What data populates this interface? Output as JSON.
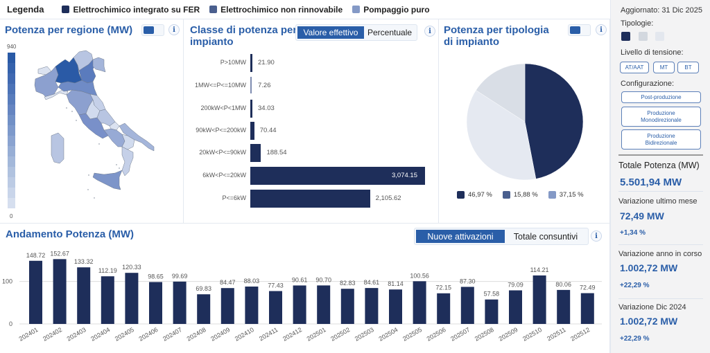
{
  "legend": {
    "title": "Legenda",
    "items": [
      {
        "label": "Elettrochimico integrato su FER",
        "color": "#1e2e5a"
      },
      {
        "label": "Elettrochimico non rinnovabile",
        "color": "#4a5f8e"
      },
      {
        "label": "Pompaggio puro",
        "color": "#8499c6"
      }
    ]
  },
  "map_panel": {
    "title": "Potenza per regione (MW)",
    "scale_max": "940",
    "scale_min": "0",
    "info_icon": "i"
  },
  "class_panel": {
    "title_line1": "Classe di potenza per",
    "title_line2": "impianto",
    "options": [
      "Valore effettivo",
      "Percentuale"
    ],
    "active_option": "Valore effettivo",
    "info_icon": "i"
  },
  "type_panel": {
    "title_line1": "Potenza per tipologia",
    "title_line2": "di impianto",
    "info_icon": "i"
  },
  "trend_panel": {
    "title": "Andamento Potenza (MW)",
    "options": [
      "Nuove attivazioni",
      "Totale consuntivi"
    ],
    "active_option": "Nuove attivazioni",
    "info_icon": "i"
  },
  "sidebar": {
    "updated": "Aggiornato: 31 Dic 2025",
    "tipologie_label": "Tipologie:",
    "tipologie_colors": [
      "#1e2e5a",
      "#d3d8df",
      "#e3e7ee"
    ],
    "tension_label": "Livello di tensione:",
    "tension_buttons": [
      "AT/AAT",
      "MT",
      "BT"
    ],
    "config_label": "Configurazione:",
    "config_buttons": [
      "Post-produzione",
      "Produzione\nMonodirezionale",
      "Produzione\nBidirezionale"
    ],
    "total_label": "Totale Potenza (MW)",
    "total_value": "5.501,94 MW",
    "stats": [
      {
        "label": "Variazione ultimo mese",
        "value": "72,49 MW",
        "pct": "+1,34 %"
      },
      {
        "label": "Variazione anno in corso",
        "value": "1.002,72 MW",
        "pct": "+22,29 %"
      },
      {
        "label": "Variazione Dic 2024",
        "value": "1.002,72 MW",
        "pct": "+22,29 %"
      }
    ]
  },
  "chart_data": [
    {
      "type": "heatmap",
      "title": "Potenza per regione (MW)",
      "scale_range": [
        0,
        940
      ],
      "note": "Choropleth map of Italian regions; Lombardia darkest"
    },
    {
      "type": "bar",
      "orientation": "horizontal",
      "title": "Classe di potenza per impianto",
      "categories": [
        "P>10MW",
        "1MW<=P<=10MW",
        "200kW<P<1MW",
        "90kW<P<=200kW",
        "20kW<P<=90kW",
        "6kW<P<=20kW",
        "P<=6kW"
      ],
      "values": [
        21.9,
        7.26,
        34.03,
        70.44,
        188.54,
        3074.15,
        2105.62
      ],
      "labels": [
        "21.90",
        "7.26",
        "34.03",
        "70.44",
        "188.54",
        "3,074.15",
        "2,105.62"
      ],
      "xlim": [
        0,
        3074.15
      ]
    },
    {
      "type": "pie",
      "title": "Potenza per tipologia di impianto",
      "slices": [
        {
          "label": "46,97 %",
          "value": 46.97,
          "color": "#1e2e5a",
          "legend_color": "#1e2e5a"
        },
        {
          "label": "15,88 %",
          "value": 15.88,
          "color": "#d9dee6",
          "legend_color": "#4a5f8e"
        },
        {
          "label": "37,15 %",
          "value": 37.15,
          "color": "#e5e9f1",
          "legend_color": "#8499c6"
        }
      ]
    },
    {
      "type": "bar",
      "title": "Andamento Potenza (MW)",
      "categories": [
        "202401",
        "202402",
        "202403",
        "202404",
        "202405",
        "202406",
        "202407",
        "202408",
        "202409",
        "202410",
        "202411",
        "202412",
        "202501",
        "202502",
        "202503",
        "202504",
        "202505",
        "202506",
        "202507",
        "202508",
        "202509",
        "202510",
        "202511",
        "202512"
      ],
      "values": [
        148.72,
        152.67,
        133.32,
        112.19,
        120.33,
        98.65,
        99.69,
        69.83,
        84.47,
        88.03,
        77.43,
        90.61,
        90.7,
        82.83,
        84.61,
        81.14,
        100.56,
        72.15,
        87.3,
        57.58,
        79.09,
        114.21,
        80.06,
        72.49
      ],
      "yticks": [
        0,
        100
      ],
      "ylim": [
        0,
        153
      ],
      "grid": true
    }
  ]
}
